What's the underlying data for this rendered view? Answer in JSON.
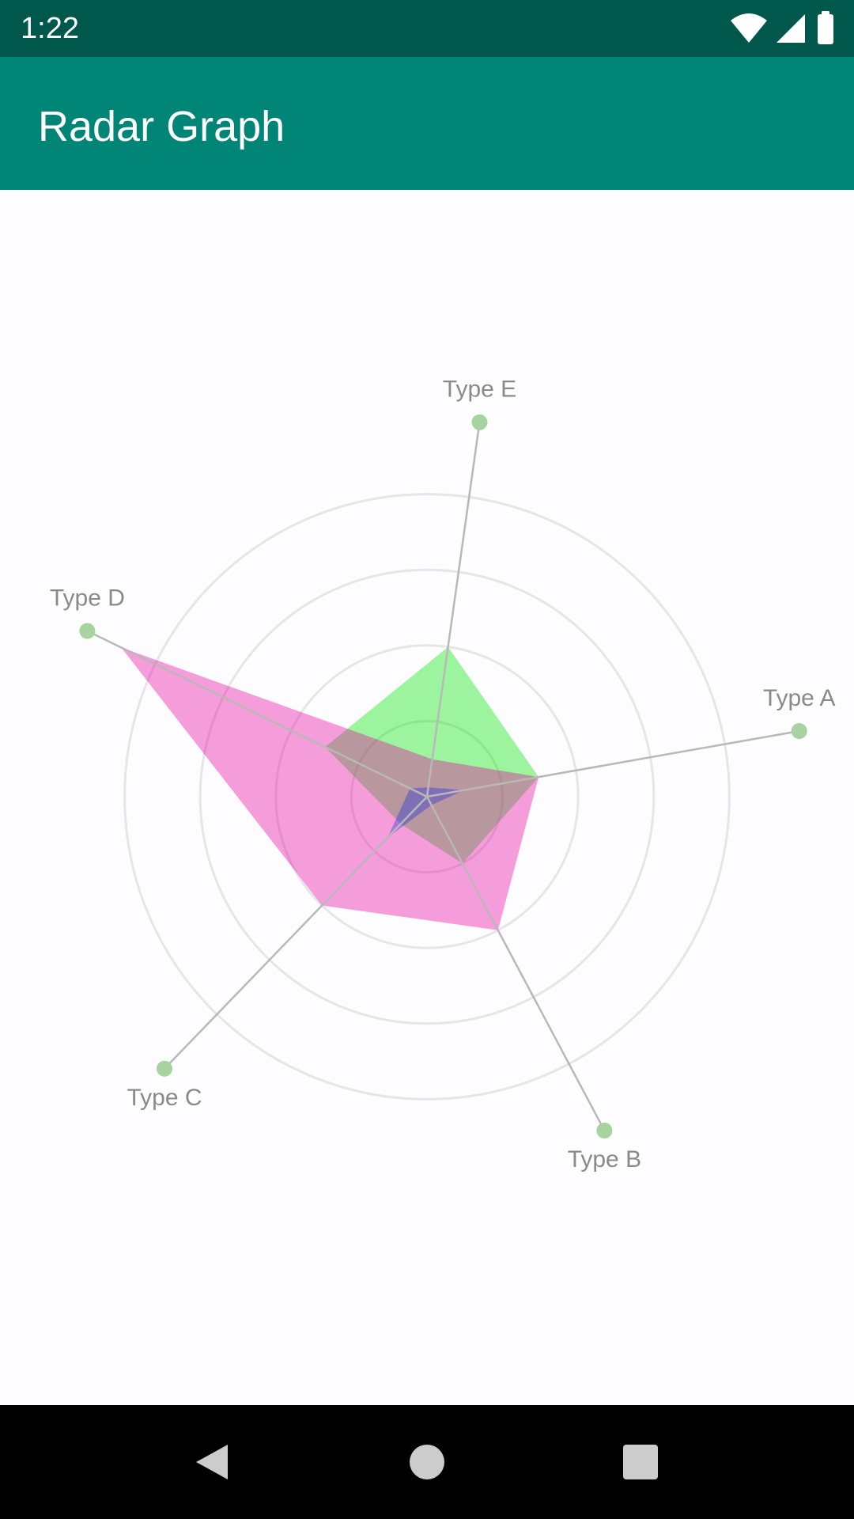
{
  "status_bar": {
    "time": "1:22",
    "icons": [
      "wifi-icon",
      "cell-signal-icon",
      "battery-icon"
    ]
  },
  "app_bar": {
    "title": "Radar Graph",
    "background_color": "#008577"
  },
  "nav_bar": {
    "icons": [
      "back-icon",
      "home-icon",
      "recents-icon"
    ]
  },
  "chart_data": {
    "type": "radar",
    "axes": [
      "Type A",
      "Type B",
      "Type C",
      "Type D",
      "Type E"
    ],
    "rings": 4,
    "max": 4,
    "series": [
      {
        "values": [
          1.2,
          0.8,
          0.4,
          1.2,
          1.6
        ],
        "color": "#00e600"
      },
      {
        "values": [
          1.2,
          1.6,
          1.6,
          3.6,
          0.4
        ],
        "color": "#e800a0"
      },
      {
        "values": [
          0.4,
          0.1,
          0.6,
          0.2,
          0.1
        ],
        "color": "#2233dd"
      }
    ]
  }
}
